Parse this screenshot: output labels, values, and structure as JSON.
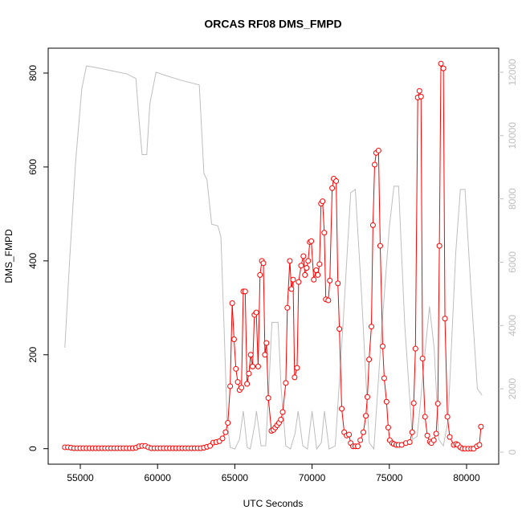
{
  "chart_data": {
    "type": "line",
    "title": "ORCAS RF08 DMS_FMPD",
    "xlabel": "UTC Seconds",
    "ylabel": "DMS_FMPD",
    "xlim": [
      52920,
      82080
    ],
    "xticks": [
      55000,
      60000,
      65000,
      70000,
      75000,
      80000
    ],
    "ylim": [
      -33,
      853
    ],
    "yticks": [
      0,
      200,
      400,
      600,
      800
    ],
    "y2lim": [
      -380,
      12760
    ],
    "y2ticks": [
      0,
      2000,
      4000,
      6000,
      8000,
      10000,
      12000
    ],
    "series": [
      {
        "color": "#ff0000",
        "markers": true,
        "x": [
          54000,
          54200,
          54400,
          54600,
          54800,
          55000,
          55200,
          55400,
          55600,
          55800,
          56000,
          56200,
          56400,
          56600,
          56800,
          57000,
          57200,
          57400,
          57600,
          57800,
          58000,
          58200,
          58400,
          58600,
          58800,
          59000,
          59200,
          59400,
          59600,
          59800,
          60000,
          60200,
          60400,
          60600,
          60800,
          61000,
          61200,
          61400,
          61600,
          61800,
          62000,
          62200,
          62400,
          62600,
          62800,
          63000,
          63200,
          63400,
          63600,
          63800,
          64000,
          64200,
          64400,
          64550,
          64700,
          64830,
          64950,
          65070,
          65190,
          65310,
          65430,
          65550,
          65670,
          65790,
          65910,
          66030,
          66150,
          66270,
          66390,
          66510,
          66630,
          66750,
          66850,
          66950,
          67050,
          67170,
          67370,
          67500,
          67620,
          67740,
          67860,
          67980,
          68100,
          68300,
          68400,
          68560,
          68660,
          68770,
          68870,
          69030,
          69130,
          69290,
          69440,
          69540,
          69650,
          69750,
          69850,
          69950,
          70110,
          70270,
          70370,
          70480,
          70580,
          70680,
          70790,
          70890,
          71050,
          71150,
          71300,
          71400,
          71560,
          71670,
          71770,
          71920,
          72080,
          72240,
          72390,
          72500,
          72650,
          72800,
          72960,
          73120,
          73320,
          73480,
          73580,
          73690,
          73840,
          73940,
          74050,
          74150,
          74300,
          74410,
          74570,
          74670,
          74820,
          74930,
          75030,
          75190,
          75290,
          75450,
          75600,
          75800,
          76070,
          76320,
          76480,
          76580,
          76690,
          76840,
          76950,
          77050,
          77150,
          77310,
          77460,
          77620,
          77720,
          77880,
          78030,
          78140,
          78240,
          78340,
          78500,
          78600,
          78760,
          78910,
          79170,
          79330,
          79430,
          79590,
          79740,
          79900,
          80100,
          80300,
          80460,
          80670,
          80830,
          80930
        ],
        "values": [
          3,
          3,
          2,
          1,
          1,
          1,
          1,
          1,
          1,
          1,
          1,
          1,
          1,
          1,
          1,
          1,
          1,
          1,
          1,
          1,
          1,
          1,
          1,
          2,
          5,
          6,
          6,
          3,
          1,
          1,
          1,
          1,
          1,
          1,
          1,
          1,
          1,
          1,
          1,
          1,
          1,
          1,
          1,
          1,
          1,
          2,
          4,
          6,
          13,
          14,
          16,
          22,
          35,
          55,
          133,
          310,
          233,
          170,
          142,
          125,
          130,
          335,
          335,
          138,
          160,
          200,
          175,
          285,
          290,
          175,
          370,
          400,
          395,
          200,
          225,
          108,
          38,
          40,
          45,
          50,
          55,
          62,
          78,
          140,
          300,
          400,
          340,
          360,
          152,
          172,
          355,
          390,
          410,
          370,
          385,
          400,
          440,
          442,
          360,
          380,
          370,
          393,
          522,
          527,
          460,
          318,
          316,
          358,
          555,
          575,
          570,
          352,
          255,
          85,
          35,
          28,
          30,
          12,
          5,
          5,
          5,
          18,
          35,
          70,
          110,
          190,
          260,
          476,
          605,
          630,
          635,
          432,
          218,
          150,
          100,
          45,
          18,
          12,
          10,
          8,
          8,
          8,
          12,
          14,
          35,
          97,
          213,
          748,
          762,
          750,
          192,
          68,
          28,
          15,
          12,
          18,
          32,
          96,
          432,
          820,
          810,
          277,
          68,
          25,
          8,
          10,
          8,
          3,
          0,
          0,
          0,
          0,
          0,
          5,
          8,
          47
        ]
      },
      {
        "color": "#bebebe",
        "axis": "y2",
        "markers": false,
        "x": [
          54000,
          54300,
          54700,
          55100,
          55400,
          56000,
          57000,
          58000,
          58600,
          58800,
          59000,
          59300,
          59500,
          59900,
          60500,
          61500,
          62700,
          63000,
          63200,
          63500,
          63900,
          64100,
          64300,
          64500,
          64700,
          65000,
          65300,
          65550,
          65800,
          66000,
          66300,
          66400,
          66700,
          67000,
          67200,
          67400,
          67800,
          68000,
          68300,
          68600,
          68900,
          69100,
          69400,
          69700,
          70000,
          70300,
          70600,
          70800,
          71100,
          71500,
          72000,
          72500,
          72800,
          73200,
          73700,
          74000,
          74500,
          75000,
          75300,
          75600,
          76000,
          76500,
          76800,
          77000,
          77300,
          77600,
          77900,
          78200,
          78500,
          78800,
          79300,
          79600,
          79900,
          80300,
          80700,
          81000
        ],
        "values": [
          3300,
          6000,
          9200,
          11500,
          12200,
          12150,
          12050,
          11950,
          11800,
          10500,
          9400,
          9400,
          11000,
          12000,
          11900,
          11750,
          11600,
          8800,
          8600,
          7200,
          7150,
          6800,
          4000,
          1000,
          150,
          100,
          400,
          1300,
          150,
          100,
          900,
          1300,
          200,
          200,
          2000,
          4100,
          4100,
          2000,
          200,
          100,
          600,
          1300,
          200,
          100,
          1300,
          100,
          300,
          1300,
          100,
          200,
          4000,
          8200,
          8300,
          5000,
          300,
          100,
          3800,
          7100,
          8400,
          8400,
          4000,
          400,
          500,
          1500,
          3100,
          4600,
          3300,
          400,
          200,
          1000,
          6300,
          8300,
          8300,
          5000,
          2000,
          1800
        ]
      }
    ]
  }
}
